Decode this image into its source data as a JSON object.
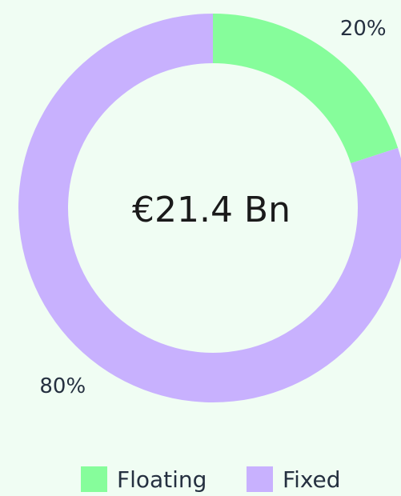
{
  "chart_data": {
    "type": "donut",
    "center_label": "€21.4 Bn",
    "categories": [
      "Floating",
      "Fixed"
    ],
    "values": [
      20,
      80
    ],
    "value_labels": [
      "20%",
      "80%"
    ],
    "colors": [
      "#86fd9b",
      "#c8b1fe"
    ],
    "legend": "bottom"
  }
}
